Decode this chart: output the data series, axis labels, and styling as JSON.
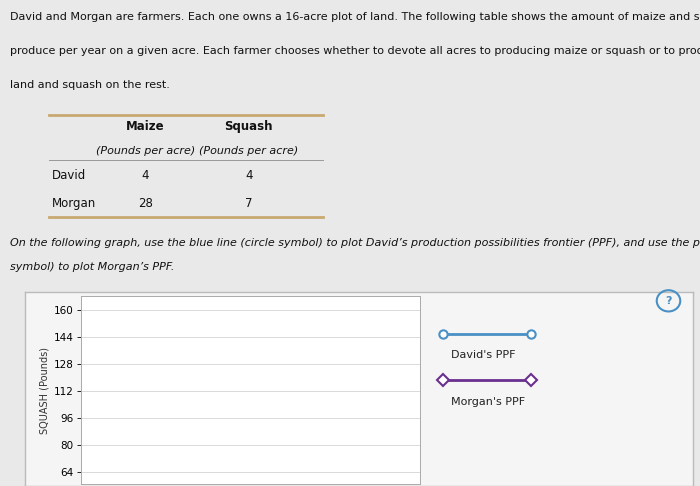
{
  "bg_color": "#e9e9e9",
  "text_main_line1": "David and Morgan are farmers. Each one owns a 16-acre plot of land. The following table shows the amount of maize and squash each farmer can",
  "text_main_line2": "produce per year on a given acre. Each farmer chooses whether to devote all acres to producing maize or squash or to produce maize on some of the",
  "text_main_line3": "land and squash on the rest.",
  "instruction_line1": "On the following graph, use the blue line (circle symbol) to plot David’s production possibilities frontier (PPF), and use the purple line (diamond",
  "instruction_line2": "symbol) to plot Morgan’s PPF.",
  "ylabel": "SQUASH (Pounds)",
  "yticks": [
    64,
    80,
    96,
    112,
    128,
    144,
    160
  ],
  "graph_bg": "#ffffff",
  "graph_border_color": "#bbbbbb",
  "david_color": "#4a90c4",
  "morgan_color": "#6a3090",
  "legend_david": "David's PPF",
  "legend_morgan": "Morgan's PPF",
  "question_mark_color": "#4a90c4",
  "table_line_color": "#c8a870",
  "font_size_main": 8.0,
  "font_size_table_header": 8.5,
  "font_size_table_italic": 8.0,
  "font_size_table_data": 8.5,
  "font_size_instruction": 8.0,
  "font_size_ylabel": 7.0,
  "font_size_ytick": 7.5,
  "font_size_legend": 8.0
}
